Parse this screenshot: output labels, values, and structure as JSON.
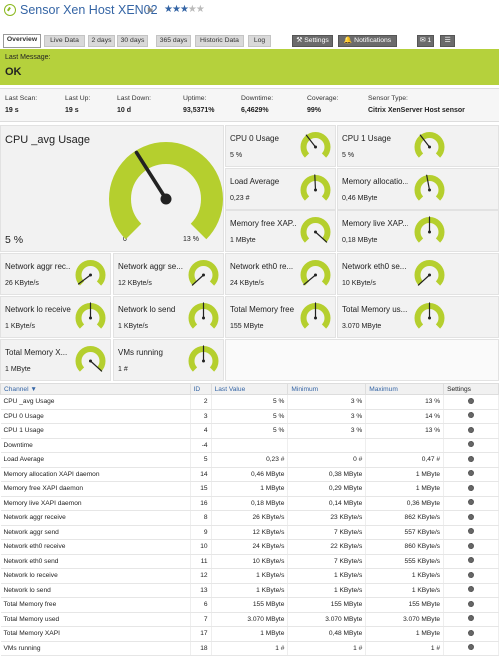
{
  "header": {
    "title_prefix": "Sensor",
    "title_name": "Xen Host XEN02",
    "flag_icon": "flag-icon",
    "stars": "★★★★★",
    "stars_filled": 3
  },
  "tabs": [
    "Overview",
    "Live Data",
    "2 days",
    "30 days",
    "365 days",
    "Historic Data",
    "Log",
    "Settings",
    "Notifications",
    "1",
    "☰"
  ],
  "status": {
    "label": "Last Message:",
    "value": "OK"
  },
  "stats": [
    {
      "k": "Last Scan:",
      "v": "19 s"
    },
    {
      "k": "Last Up:",
      "v": "19 s"
    },
    {
      "k": "Last Down:",
      "v": "10 d"
    },
    {
      "k": "Uptime:",
      "v": "93,5371%"
    },
    {
      "k": "Downtime:",
      "v": "6,4629%"
    },
    {
      "k": "Coverage:",
      "v": "99%"
    },
    {
      "k": "Sensor Type:",
      "v": "Citrix XenServer Host sensor"
    }
  ],
  "big_gauge": {
    "name": "CPU _avg Usage",
    "value": "5 %",
    "min": "0",
    "max": "13 %",
    "level": 0.38
  },
  "gauges": [
    {
      "name": "CPU 0 Usage",
      "value": "5 %",
      "level": 0.36
    },
    {
      "name": "CPU 1 Usage",
      "value": "5 %",
      "level": 0.36
    },
    {
      "name": "Load Average",
      "value": "0,23 #",
      "level": 0.49
    },
    {
      "name": "Memory allocatio...",
      "value": "0,46 MByte",
      "level": 0.46
    },
    {
      "name": "Memory free XAP...",
      "value": "1 MByte",
      "level": 0.99
    },
    {
      "name": "Memory live XAP...",
      "value": "0,18 MByte",
      "level": 0.5
    },
    {
      "name": "Network aggr rec...",
      "value": "26 KByte/s",
      "level": 0.03
    },
    {
      "name": "Network aggr se...",
      "value": "12 KByte/s",
      "level": 0.01
    },
    {
      "name": "Network eth0 re...",
      "value": "24 KByte/s",
      "level": 0.02
    },
    {
      "name": "Network eth0 se...",
      "value": "10 KByte/s",
      "level": 0.01
    },
    {
      "name": "Network lo receive",
      "value": "1 KByte/s",
      "level": 0.5
    },
    {
      "name": "Network lo send",
      "value": "1 KByte/s",
      "level": 0.5
    },
    {
      "name": "Total Memory free",
      "value": "155 MByte",
      "level": 0.5
    },
    {
      "name": "Total Memory us...",
      "value": "3.070 MByte",
      "level": 0.5
    },
    {
      "name": "Total Memory X...",
      "value": "1 MByte",
      "level": 0.99
    },
    {
      "name": "VMs running",
      "value": "1 #",
      "level": 0.5
    }
  ],
  "table": {
    "headers": [
      "Channel ▼",
      "ID",
      "Last Value",
      "Minimum",
      "Maximum",
      "Settings"
    ],
    "rows": [
      [
        "CPU _avg Usage",
        "2",
        "5 %",
        "3 %",
        "13 %"
      ],
      [
        "CPU 0 Usage",
        "3",
        "5 %",
        "3 %",
        "14 %"
      ],
      [
        "CPU 1 Usage",
        "4",
        "5 %",
        "3 %",
        "13 %"
      ],
      [
        "Downtime",
        "-4",
        "",
        "",
        ""
      ],
      [
        "Load Average",
        "5",
        "0,23 #",
        "0 #",
        "0,47 #"
      ],
      [
        "Memory allocation XAPI daemon",
        "14",
        "0,46 MByte",
        "0,38 MByte",
        "1 MByte"
      ],
      [
        "Memory free XAPI daemon",
        "15",
        "1 MByte",
        "0,29 MByte",
        "1 MByte"
      ],
      [
        "Memory live XAPI daemon",
        "16",
        "0,18 MByte",
        "0,14 MByte",
        "0,36 MByte"
      ],
      [
        "Network aggr receive",
        "8",
        "26 KByte/s",
        "23 KByte/s",
        "862 KByte/s"
      ],
      [
        "Network aggr send",
        "9",
        "12 KByte/s",
        "7 KByte/s",
        "557 KByte/s"
      ],
      [
        "Network eth0 receive",
        "10",
        "24 KByte/s",
        "22 KByte/s",
        "860 KByte/s"
      ],
      [
        "Network eth0 send",
        "11",
        "10 KByte/s",
        "7 KByte/s",
        "555 KByte/s"
      ],
      [
        "Network lo receive",
        "12",
        "1 KByte/s",
        "1 KByte/s",
        "1 KByte/s"
      ],
      [
        "Network lo send",
        "13",
        "1 KByte/s",
        "1 KByte/s",
        "1 KByte/s"
      ],
      [
        "Total Memory free",
        "6",
        "155 MByte",
        "155 MByte",
        "155 MByte"
      ],
      [
        "Total Memory used",
        "7",
        "3.070 MByte",
        "3.070 MByte",
        "3.070 MByte"
      ],
      [
        "Total Memory XAPI",
        "17",
        "1 MByte",
        "0,48 MByte",
        "1 MByte"
      ],
      [
        "VMs running",
        "18",
        "1 #",
        "1 #",
        "1 #"
      ]
    ]
  },
  "colors": {
    "accent": "#b5d13c",
    "link": "#3565a5",
    "gauge": "#b5cf2e"
  }
}
